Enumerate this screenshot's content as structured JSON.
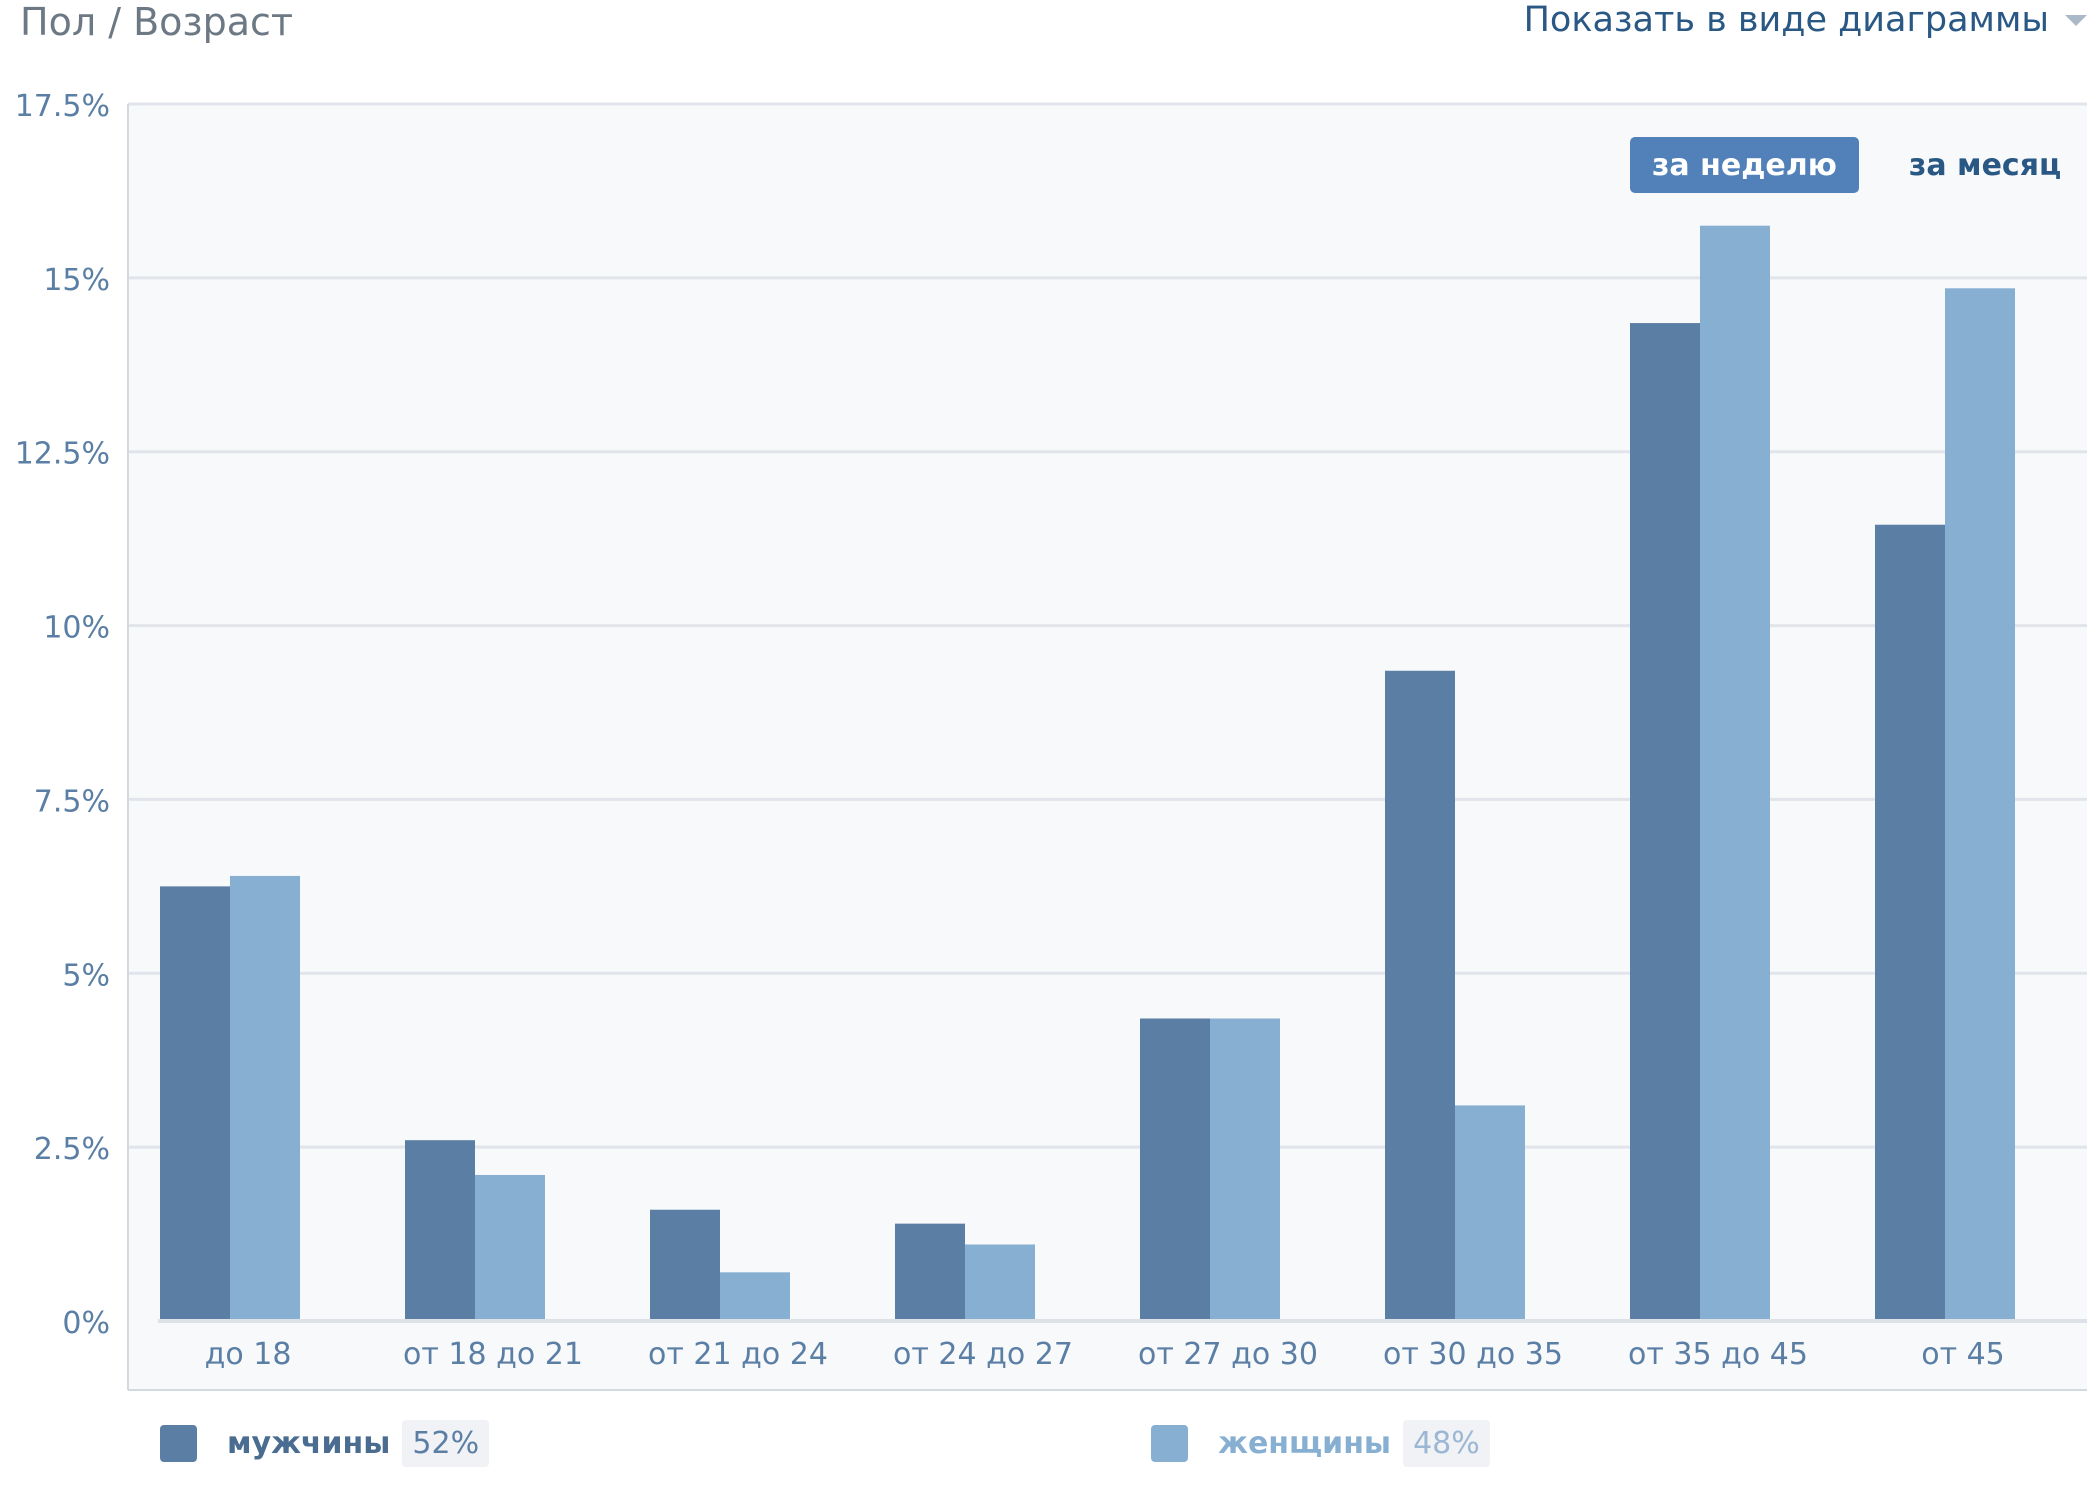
{
  "header": {
    "title": "Пол / Возраст",
    "view_toggle_label": "Показать в виде диаграммы"
  },
  "period_switch": {
    "week_label": "за неделю",
    "month_label": "за месяц",
    "active": "week"
  },
  "legend": {
    "items": [
      {
        "label": "мужчины",
        "percent": "52%",
        "color": "#5a7ea4"
      },
      {
        "label": "женщины",
        "percent": "48%",
        "color": "#87afd2"
      }
    ]
  },
  "chart_data": {
    "type": "bar",
    "categories": [
      "до 18",
      "от 18 до 21",
      "от 21 до 24",
      "от 24 до 27",
      "от 27 до 30",
      "от 30 до 35",
      "от 35 до 45",
      "от 45"
    ],
    "series": [
      {
        "name": "мужчины",
        "color": "#5a7ea4",
        "values": [
          6.25,
          2.6,
          1.6,
          1.4,
          4.35,
          9.35,
          14.35,
          11.45
        ]
      },
      {
        "name": "женщины",
        "color": "#87afd2",
        "values": [
          6.4,
          2.1,
          0.7,
          1.1,
          4.35,
          3.1,
          15.75,
          14.85
        ]
      }
    ],
    "y_ticks": [
      "0%",
      "2.5%",
      "5%",
      "7.5%",
      "10%",
      "12.5%",
      "15%",
      "17.5%"
    ],
    "ylim": [
      0,
      17.5
    ],
    "grid": true,
    "legend_position": "bottom"
  }
}
